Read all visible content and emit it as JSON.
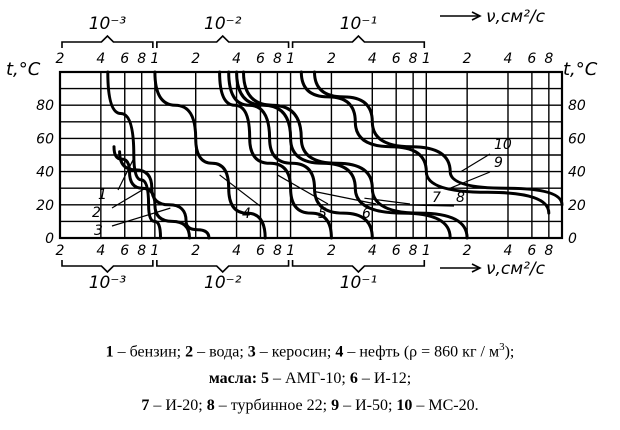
{
  "chart_data": {
    "type": "line",
    "scale": "log",
    "y_label": "t,°C",
    "x_label": "ν,см²/с",
    "y_ticks": [
      0,
      20,
      40,
      60,
      80
    ],
    "decade_labels": [
      "10⁻³",
      "10⁻²",
      "10⁻¹"
    ],
    "x_tick_labels": [
      "2",
      "4",
      "6",
      "8",
      "1",
      "2",
      "4",
      "6",
      "8",
      "1",
      "2",
      "4",
      "6",
      "8",
      "1",
      "2",
      "4",
      "6",
      "8"
    ],
    "ylim": [
      0,
      100
    ],
    "xlim": [
      0.002,
      10
    ],
    "series": [
      {
        "curve_label": "1",
        "points": [
          [
            0.0045,
            100
          ],
          [
            0.007,
            50
          ],
          [
            0.009,
            20
          ],
          [
            0.011,
            0
          ]
        ]
      },
      {
        "curve_label": "2",
        "points": [
          [
            0.005,
            55
          ],
          [
            0.0065,
            40
          ],
          [
            0.01,
            20
          ],
          [
            0.018,
            0
          ]
        ]
      },
      {
        "curve_label": "3",
        "points": [
          [
            0.0055,
            52
          ],
          [
            0.0095,
            30
          ],
          [
            0.017,
            10
          ],
          [
            0.025,
            0
          ]
        ]
      },
      {
        "curve_label": "4",
        "points": [
          [
            0.01,
            100
          ],
          [
            0.02,
            60
          ],
          [
            0.035,
            30
          ],
          [
            0.065,
            0
          ]
        ]
      },
      {
        "curve_label": "5",
        "points": [
          [
            0.03,
            100
          ],
          [
            0.05,
            60
          ],
          [
            0.1,
            30
          ],
          [
            0.2,
            0
          ]
        ]
      },
      {
        "curve_label": "6",
        "points": [
          [
            0.035,
            100
          ],
          [
            0.07,
            60
          ],
          [
            0.15,
            30
          ],
          [
            0.4,
            0
          ]
        ]
      },
      {
        "curve_label": "7",
        "points": [
          [
            0.04,
            100
          ],
          [
            0.1,
            60
          ],
          [
            0.3,
            30
          ],
          [
            1.5,
            0
          ]
        ]
      },
      {
        "curve_label": "8",
        "points": [
          [
            0.045,
            100
          ],
          [
            0.12,
            60
          ],
          [
            0.4,
            30
          ],
          [
            2,
            0
          ]
        ]
      },
      {
        "curve_label": "9",
        "points": [
          [
            0.12,
            100
          ],
          [
            0.3,
            70
          ],
          [
            1,
            40
          ],
          [
            8,
            15
          ]
        ]
      },
      {
        "curve_label": "10",
        "points": [
          [
            0.15,
            100
          ],
          [
            0.4,
            70
          ],
          [
            1.5,
            40
          ],
          [
            10,
            20
          ]
        ]
      }
    ]
  },
  "legend": {
    "line1": [
      {
        "num": "1",
        "text": " – бензин; "
      },
      {
        "num": "2",
        "text": " – вода; "
      },
      {
        "num": "3",
        "text": " – керосин; "
      },
      {
        "num": "4",
        "text": " – нефть (ρ = 860 кг / м"
      },
      {
        "sup": "3"
      },
      {
        "text": ");"
      }
    ],
    "line2": [
      {
        "num": "масла: 5",
        "text": " – АМГ-10;   "
      },
      {
        "num": "6",
        "text": " – И-12;"
      }
    ],
    "line3": [
      {
        "num": "7",
        "text": " – И-20; "
      },
      {
        "num": "8",
        "text": " – турбинное 22; "
      },
      {
        "num": "9",
        "text": " – И-50; "
      },
      {
        "num": "10",
        "text": " – МС-20."
      }
    ]
  }
}
